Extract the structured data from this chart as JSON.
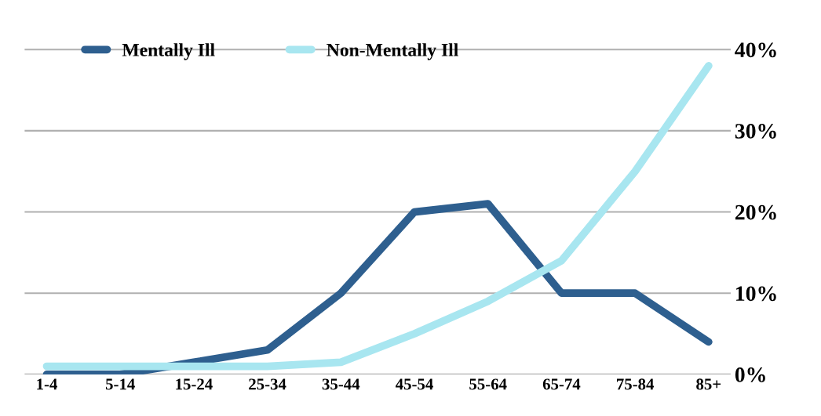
{
  "chart_data": {
    "type": "line",
    "categories": [
      "1-4",
      "5-14",
      "15-24",
      "25-34",
      "35-44",
      "45-54",
      "55-64",
      "65-74",
      "75-84",
      "85+"
    ],
    "series": [
      {
        "name": "Mentally Ill",
        "color": "#2e5f8f",
        "values": [
          0,
          0,
          1.5,
          3,
          10,
          20,
          21,
          10,
          10,
          4
        ]
      },
      {
        "name": "Non-Mentally Ill",
        "color": "#a8e6f0",
        "values": [
          1,
          1,
          1,
          1,
          1.5,
          5,
          9,
          14,
          25,
          38
        ]
      }
    ],
    "ylim": [
      0,
      40
    ],
    "yticks": [
      {
        "value": 0,
        "label": "0%"
      },
      {
        "value": 10,
        "label": "10%"
      },
      {
        "value": 20,
        "label": "20%"
      },
      {
        "value": 30,
        "label": "30%"
      },
      {
        "value": 40,
        "label": "40%"
      }
    ],
    "grid": "y",
    "legend": "top",
    "marker": "none",
    "line_style": "solid"
  }
}
